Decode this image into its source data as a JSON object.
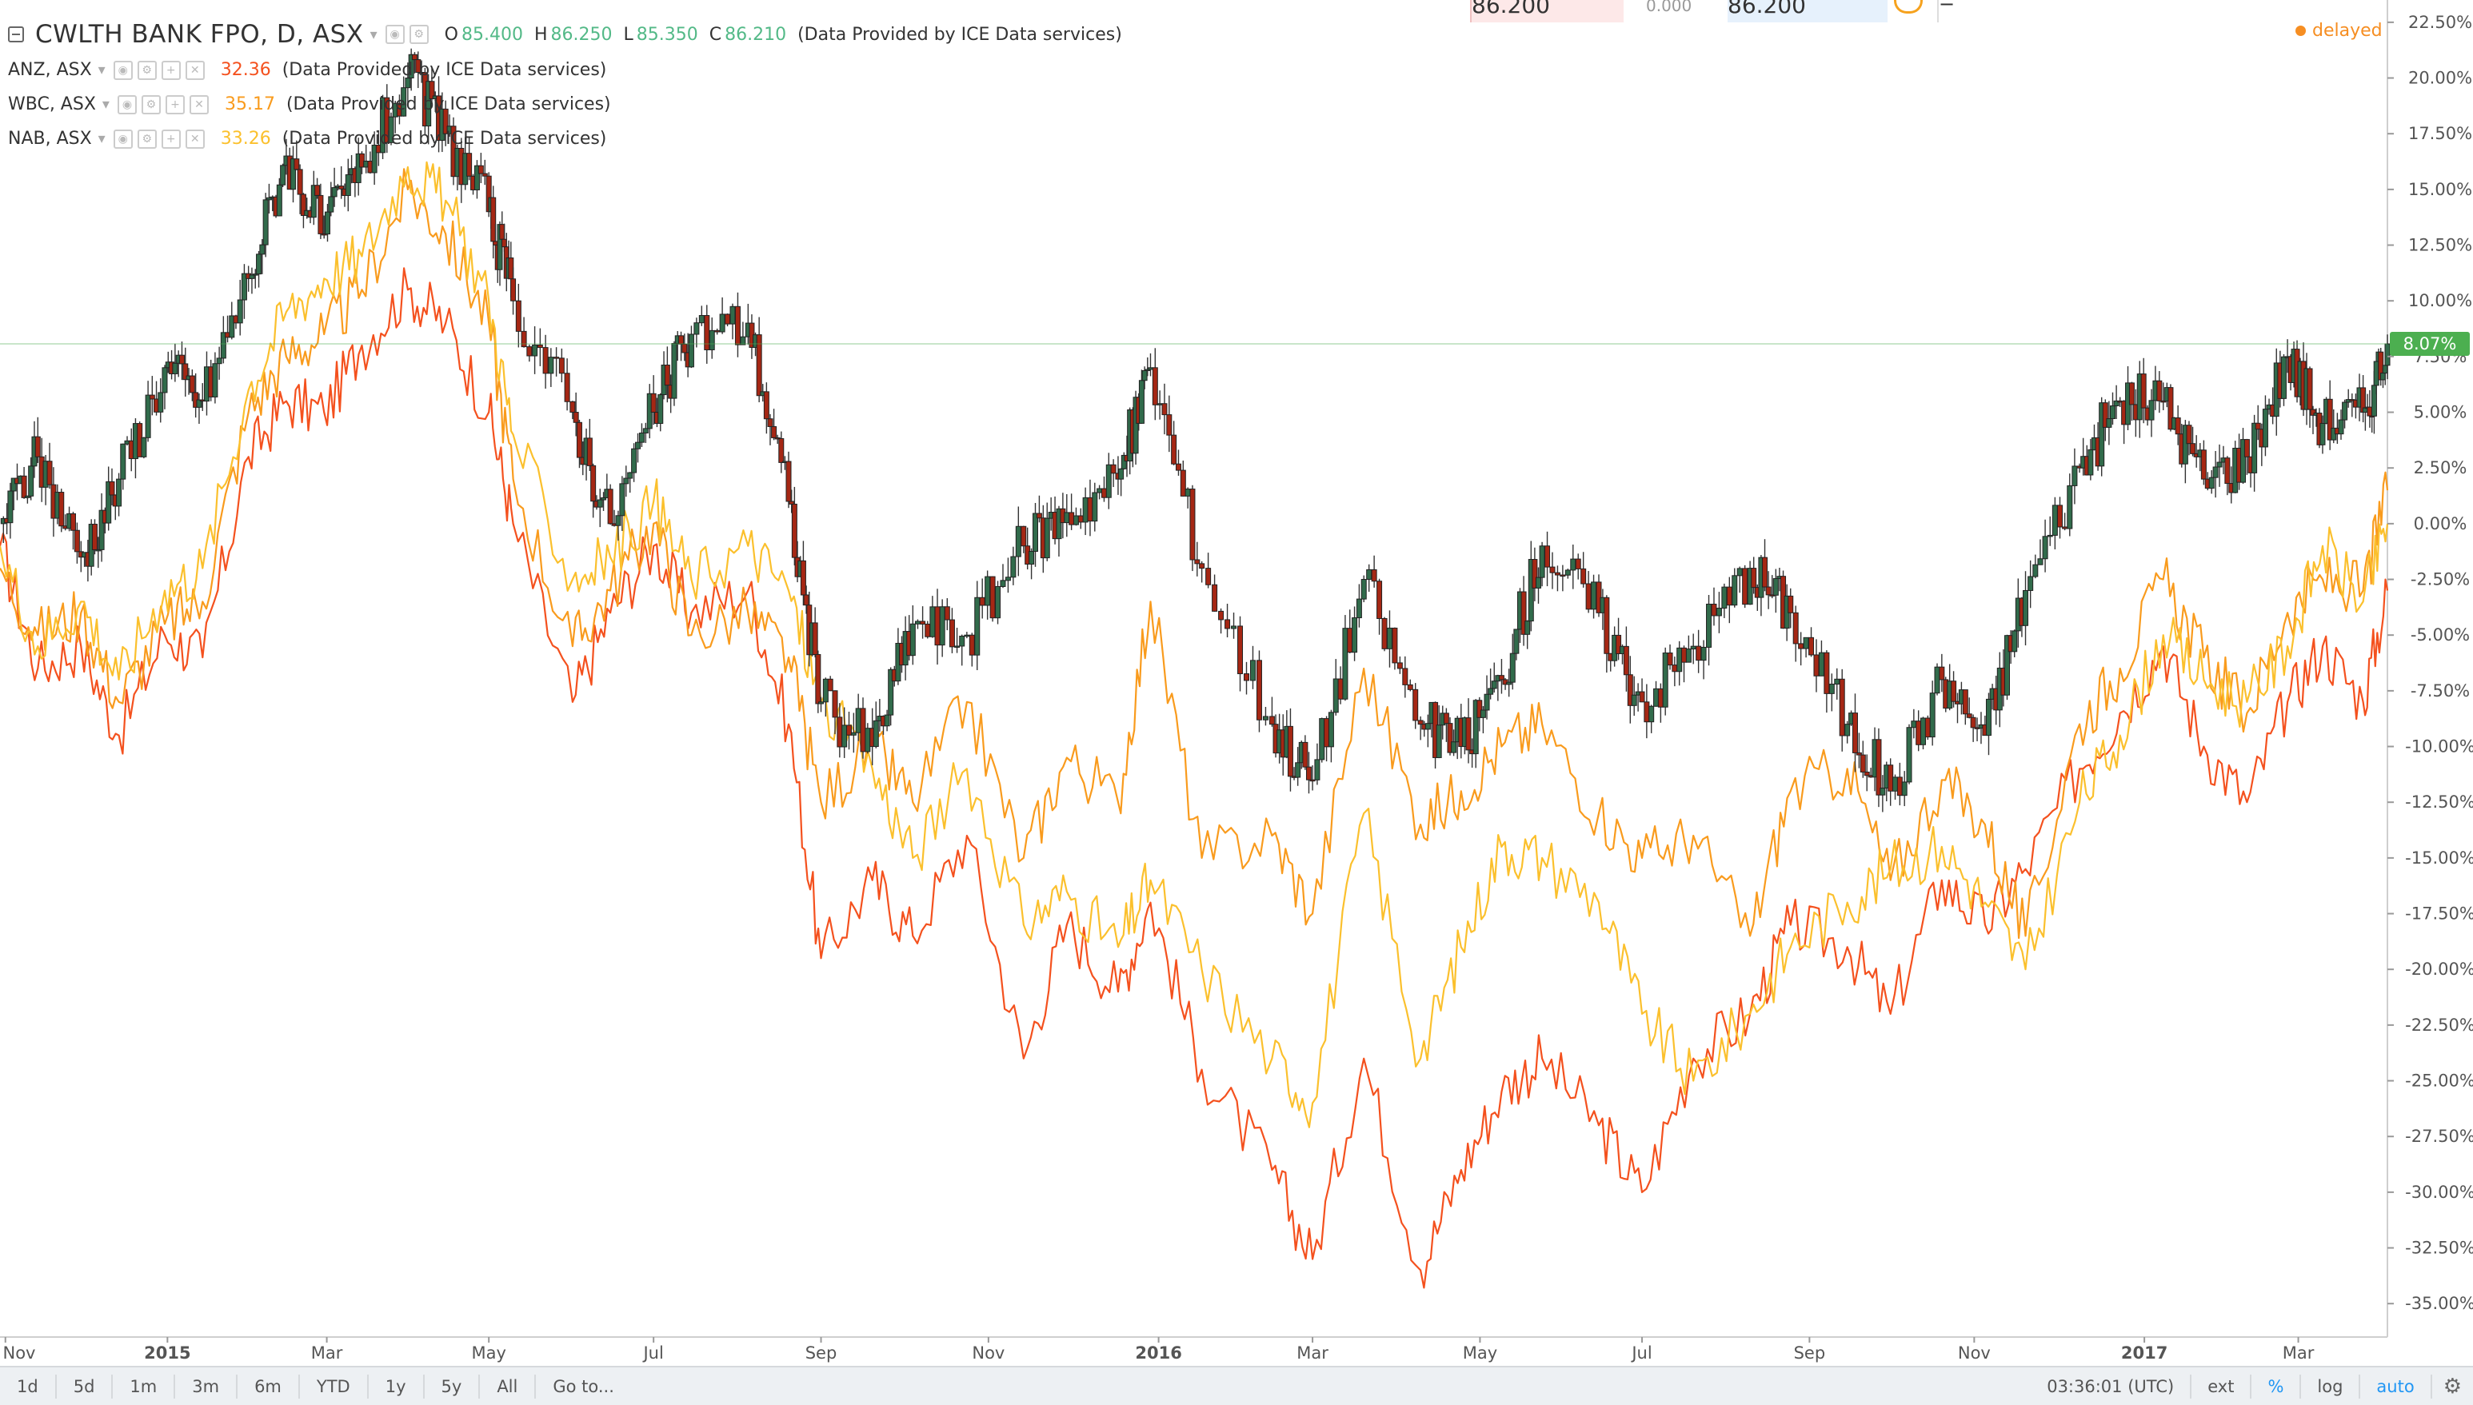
{
  "main_series": {
    "title": "CWLTH BANK FPO, D, ASX",
    "o_label": "O",
    "o": "85.400",
    "h_label": "H",
    "h": "86.250",
    "l_label": "L",
    "l": "85.350",
    "c_label": "C",
    "c": "86.210",
    "source": "(Data Provided by ICE Data services)"
  },
  "compare": [
    {
      "symbol": "ANZ, ASX",
      "value": "32.36",
      "color": "#f4511e",
      "source": "(Data Provided by ICE Data services)"
    },
    {
      "symbol": "WBC, ASX",
      "value": "35.17",
      "color": "#f99b1d",
      "source": "(Data Provided by ICE Data services)"
    },
    {
      "symbol": "NAB, ASX",
      "value": "33.26",
      "color": "#fbc02d",
      "source": "(Data Provided by ICE Data services)"
    }
  ],
  "delayed": "delayed",
  "order_panel": {
    "sell_price": "86.200",
    "spread": "0.000",
    "buy_price": "86.200",
    "minus": "−"
  },
  "colors": {
    "up": "#53b987",
    "down": "#eb4d5c",
    "candle_up_fill": "#316b4b",
    "candle_down_fill": "#a52714",
    "badge": "#4caf50",
    "axis_text": "#555555"
  },
  "toolbar": {
    "ranges": [
      "1d",
      "5d",
      "1m",
      "3m",
      "6m",
      "YTD",
      "1y",
      "5y",
      "All"
    ],
    "goto": "Go to...",
    "time": "03:36:01 (UTC)",
    "ext": "ext",
    "percent": "%",
    "log": "log",
    "auto": "auto"
  },
  "chart_data": {
    "type": "line",
    "title": "CWLTH BANK FPO, D, ASX",
    "y_scale": "percent",
    "ylim": [
      -36.5,
      23.5
    ],
    "y_ticks": [
      "22.50%",
      "20.00%",
      "17.50%",
      "15.00%",
      "12.50%",
      "10.00%",
      "7.50%",
      "5.00%",
      "2.50%",
      "0.00%",
      "-2.50%",
      "-5.00%",
      "-7.50%",
      "-10.00%",
      "-12.50%",
      "-15.00%",
      "-17.50%",
      "-20.00%",
      "-22.50%",
      "-25.00%",
      "-27.50%",
      "-30.00%",
      "-32.50%",
      "-35.00%"
    ],
    "x_ticks": [
      "Nov",
      "2015",
      "Mar",
      "May",
      "Jul",
      "Sep",
      "Nov",
      "2016",
      "Mar",
      "May",
      "Jul",
      "Sep",
      "Nov",
      "2017",
      "Mar"
    ],
    "x_tick_dates": [
      "2014-11-03",
      "2015-01-02",
      "2015-03-02",
      "2015-05-01",
      "2015-07-01",
      "2015-09-01",
      "2015-11-02",
      "2016-01-04",
      "2016-03-01",
      "2016-05-02",
      "2016-07-01",
      "2016-09-01",
      "2016-11-01",
      "2017-01-03",
      "2017-03-01"
    ],
    "x_range": [
      "2014-11-01",
      "2017-04-03"
    ],
    "last_value_label": "8.07%",
    "series": [
      {
        "name": "CWLTH BANK FPO",
        "kind": "candlestick",
        "color": "#53b987",
        "points": [
          [
            "2014-11-01",
            0.0
          ],
          [
            "2014-11-15",
            3.0
          ],
          [
            "2014-12-01",
            -1.5
          ],
          [
            "2014-12-15",
            2.0
          ],
          [
            "2015-01-01",
            7.0
          ],
          [
            "2015-01-15",
            5.5
          ],
          [
            "2015-02-01",
            11.0
          ],
          [
            "2015-02-15",
            16.5
          ],
          [
            "2015-03-01",
            13.0
          ],
          [
            "2015-03-15",
            16.0
          ],
          [
            "2015-04-01",
            20.0
          ],
          [
            "2015-04-15",
            17.5
          ],
          [
            "2015-05-01",
            14.0
          ],
          [
            "2015-05-10",
            10.0
          ],
          [
            "2015-06-01",
            5.0
          ],
          [
            "2015-06-15",
            0.0
          ],
          [
            "2015-07-01",
            5.0
          ],
          [
            "2015-07-15",
            8.5
          ],
          [
            "2015-08-05",
            9.0
          ],
          [
            "2015-08-20",
            1.0
          ],
          [
            "2015-09-01",
            -8.0
          ],
          [
            "2015-09-20",
            -10.0
          ],
          [
            "2015-10-05",
            -4.5
          ],
          [
            "2015-10-25",
            -5.0
          ],
          [
            "2015-11-15",
            -1.0
          ],
          [
            "2015-12-01",
            0.5
          ],
          [
            "2015-12-20",
            2.0
          ],
          [
            "2016-01-01",
            7.0
          ],
          [
            "2016-01-20",
            -2.0
          ],
          [
            "2016-02-15",
            -9.0
          ],
          [
            "2016-03-01",
            -11.5
          ],
          [
            "2016-03-20",
            -2.5
          ],
          [
            "2016-04-10",
            -9.0
          ],
          [
            "2016-04-25",
            -10.0
          ],
          [
            "2016-05-10",
            -7.0
          ],
          [
            "2016-05-25",
            -1.0
          ],
          [
            "2016-06-15",
            -4.0
          ],
          [
            "2016-07-01",
            -8.0
          ],
          [
            "2016-07-20",
            -5.5
          ],
          [
            "2016-08-10",
            -2.0
          ],
          [
            "2016-08-25",
            -4.0
          ],
          [
            "2016-09-15",
            -9.0
          ],
          [
            "2016-10-01",
            -12.0
          ],
          [
            "2016-10-20",
            -7.0
          ],
          [
            "2016-11-05",
            -9.5
          ],
          [
            "2016-11-20",
            -3.0
          ],
          [
            "2016-12-10",
            2.5
          ],
          [
            "2016-12-25",
            5.5
          ],
          [
            "2017-01-10",
            5.5
          ],
          [
            "2017-01-25",
            2.0
          ],
          [
            "2017-02-10",
            3.0
          ],
          [
            "2017-02-25",
            7.5
          ],
          [
            "2017-03-10",
            4.5
          ],
          [
            "2017-03-25",
            5.0
          ],
          [
            "2017-04-03",
            8.07
          ]
        ]
      },
      {
        "name": "ANZ, ASX",
        "color": "#f4511e",
        "points": [
          [
            "2014-11-01",
            -1.0
          ],
          [
            "2014-11-15",
            -6.5
          ],
          [
            "2014-12-01",
            -5.5
          ],
          [
            "2014-12-15",
            -9.5
          ],
          [
            "2015-01-01",
            -5.0
          ],
          [
            "2015-01-15",
            -6.0
          ],
          [
            "2015-02-01",
            3.0
          ],
          [
            "2015-02-15",
            5.5
          ],
          [
            "2015-03-01",
            5.0
          ],
          [
            "2015-03-15",
            8.0
          ],
          [
            "2015-04-01",
            10.5
          ],
          [
            "2015-04-15",
            9.0
          ],
          [
            "2015-05-01",
            5.0
          ],
          [
            "2015-05-10",
            0.0
          ],
          [
            "2015-06-01",
            -8.0
          ],
          [
            "2015-06-15",
            -4.0
          ],
          [
            "2015-07-01",
            -1.0
          ],
          [
            "2015-07-15",
            -4.0
          ],
          [
            "2015-08-05",
            -3.0
          ],
          [
            "2015-08-20",
            -9.0
          ],
          [
            "2015-09-01",
            -19.5
          ],
          [
            "2015-09-20",
            -16.0
          ],
          [
            "2015-10-05",
            -18.5
          ],
          [
            "2015-10-25",
            -14.0
          ],
          [
            "2015-11-15",
            -24.0
          ],
          [
            "2015-12-01",
            -18.0
          ],
          [
            "2015-12-20",
            -21.0
          ],
          [
            "2016-01-01",
            -17.0
          ],
          [
            "2016-01-20",
            -24.5
          ],
          [
            "2016-02-15",
            -29.0
          ],
          [
            "2016-03-01",
            -33.0
          ],
          [
            "2016-03-20",
            -24.0
          ],
          [
            "2016-04-10",
            -33.5
          ],
          [
            "2016-04-25",
            -29.0
          ],
          [
            "2016-05-10",
            -25.5
          ],
          [
            "2016-05-25",
            -24.0
          ],
          [
            "2016-06-15",
            -27.0
          ],
          [
            "2016-07-01",
            -30.0
          ],
          [
            "2016-07-20",
            -24.0
          ],
          [
            "2016-08-10",
            -22.0
          ],
          [
            "2016-08-25",
            -18.0
          ],
          [
            "2016-09-15",
            -19.0
          ],
          [
            "2016-10-01",
            -22.0
          ],
          [
            "2016-10-20",
            -16.0
          ],
          [
            "2016-11-05",
            -18.0
          ],
          [
            "2016-11-20",
            -15.5
          ],
          [
            "2016-12-10",
            -11.0
          ],
          [
            "2016-12-25",
            -8.5
          ],
          [
            "2017-01-10",
            -5.5
          ],
          [
            "2017-01-25",
            -10.0
          ],
          [
            "2017-02-10",
            -12.5
          ],
          [
            "2017-02-25",
            -8.0
          ],
          [
            "2017-03-10",
            -5.5
          ],
          [
            "2017-03-25",
            -8.0
          ],
          [
            "2017-04-03",
            -3.0
          ]
        ]
      },
      {
        "name": "WBC, ASX",
        "color": "#f99b1d",
        "points": [
          [
            "2014-11-01",
            -2.0
          ],
          [
            "2014-11-15",
            -5.0
          ],
          [
            "2014-12-01",
            -4.0
          ],
          [
            "2014-12-15",
            -8.0
          ],
          [
            "2015-01-01",
            -4.5
          ],
          [
            "2015-01-15",
            -3.5
          ],
          [
            "2015-02-01",
            5.0
          ],
          [
            "2015-02-15",
            7.5
          ],
          [
            "2015-03-01",
            8.5
          ],
          [
            "2015-03-15",
            10.5
          ],
          [
            "2015-04-01",
            15.0
          ],
          [
            "2015-04-15",
            13.0
          ],
          [
            "2015-05-01",
            9.0
          ],
          [
            "2015-05-10",
            2.0
          ],
          [
            "2015-06-01",
            -5.5
          ],
          [
            "2015-06-15",
            -3.0
          ],
          [
            "2015-07-01",
            0.0
          ],
          [
            "2015-07-15",
            -5.0
          ],
          [
            "2015-08-05",
            -4.0
          ],
          [
            "2015-08-20",
            -6.0
          ],
          [
            "2015-09-01",
            -12.5
          ],
          [
            "2015-09-20",
            -10.0
          ],
          [
            "2015-10-05",
            -12.5
          ],
          [
            "2015-10-25",
            -8.0
          ],
          [
            "2015-11-15",
            -15.0
          ],
          [
            "2015-12-01",
            -10.5
          ],
          [
            "2015-12-20",
            -12.5
          ],
          [
            "2016-01-01",
            -3.5
          ],
          [
            "2016-01-20",
            -15.0
          ],
          [
            "2016-02-15",
            -14.0
          ],
          [
            "2016-03-01",
            -17.5
          ],
          [
            "2016-03-20",
            -6.5
          ],
          [
            "2016-04-10",
            -13.5
          ],
          [
            "2016-04-25",
            -12.0
          ],
          [
            "2016-05-10",
            -10.0
          ],
          [
            "2016-05-25",
            -9.0
          ],
          [
            "2016-06-15",
            -13.0
          ],
          [
            "2016-07-01",
            -15.0
          ],
          [
            "2016-07-20",
            -14.0
          ],
          [
            "2016-08-10",
            -18.5
          ],
          [
            "2016-08-25",
            -12.0
          ],
          [
            "2016-09-15",
            -11.0
          ],
          [
            "2016-10-01",
            -16.0
          ],
          [
            "2016-10-20",
            -11.5
          ],
          [
            "2016-11-05",
            -13.5
          ],
          [
            "2016-11-20",
            -18.5
          ],
          [
            "2016-12-10",
            -9.0
          ],
          [
            "2016-12-25",
            -6.5
          ],
          [
            "2017-01-10",
            -2.5
          ],
          [
            "2017-01-25",
            -6.0
          ],
          [
            "2017-02-10",
            -8.5
          ],
          [
            "2017-02-25",
            -4.0
          ],
          [
            "2017-03-10",
            -2.5
          ],
          [
            "2017-03-25",
            -3.0
          ],
          [
            "2017-04-03",
            1.5
          ]
        ]
      },
      {
        "name": "NAB, ASX",
        "color": "#fbc02d",
        "points": [
          [
            "2014-11-01",
            -1.0
          ],
          [
            "2014-11-15",
            -5.5
          ],
          [
            "2014-12-01",
            -3.5
          ],
          [
            "2014-12-15",
            -7.0
          ],
          [
            "2015-01-01",
            -3.0
          ],
          [
            "2015-01-15",
            -2.0
          ],
          [
            "2015-02-01",
            6.0
          ],
          [
            "2015-02-15",
            9.5
          ],
          [
            "2015-03-01",
            11.0
          ],
          [
            "2015-03-15",
            12.0
          ],
          [
            "2015-04-01",
            16.0
          ],
          [
            "2015-04-15",
            14.5
          ],
          [
            "2015-05-01",
            10.0
          ],
          [
            "2015-05-10",
            4.0
          ],
          [
            "2015-06-01",
            -2.5
          ],
          [
            "2015-06-15",
            -1.5
          ],
          [
            "2015-07-01",
            1.0
          ],
          [
            "2015-07-15",
            -2.5
          ],
          [
            "2015-08-05",
            -1.0
          ],
          [
            "2015-08-20",
            -3.0
          ],
          [
            "2015-09-01",
            -8.0
          ],
          [
            "2015-09-20",
            -11.0
          ],
          [
            "2015-10-05",
            -15.0
          ],
          [
            "2015-10-25",
            -11.0
          ],
          [
            "2015-11-15",
            -18.0
          ],
          [
            "2015-12-01",
            -16.5
          ],
          [
            "2015-12-20",
            -19.0
          ],
          [
            "2016-01-01",
            -16.0
          ],
          [
            "2016-01-20",
            -20.0
          ],
          [
            "2016-02-15",
            -24.0
          ],
          [
            "2016-03-01",
            -26.0
          ],
          [
            "2016-03-20",
            -13.0
          ],
          [
            "2016-04-10",
            -24.0
          ],
          [
            "2016-04-25",
            -19.0
          ],
          [
            "2016-05-10",
            -14.5
          ],
          [
            "2016-05-25",
            -15.0
          ],
          [
            "2016-06-15",
            -17.0
          ],
          [
            "2016-07-01",
            -22.0
          ],
          [
            "2016-07-20",
            -25.0
          ],
          [
            "2016-08-10",
            -22.0
          ],
          [
            "2016-08-25",
            -19.0
          ],
          [
            "2016-09-15",
            -17.0
          ],
          [
            "2016-10-01",
            -15.5
          ],
          [
            "2016-10-20",
            -14.5
          ],
          [
            "2016-11-05",
            -17.0
          ],
          [
            "2016-11-20",
            -20.0
          ],
          [
            "2016-12-10",
            -12.5
          ],
          [
            "2016-12-25",
            -9.5
          ],
          [
            "2017-01-10",
            -5.0
          ],
          [
            "2017-01-25",
            -7.0
          ],
          [
            "2017-02-10",
            -8.0
          ],
          [
            "2017-02-25",
            -5.5
          ],
          [
            "2017-03-10",
            -1.0
          ],
          [
            "2017-03-25",
            -3.5
          ],
          [
            "2017-04-03",
            0.0
          ]
        ]
      }
    ]
  }
}
